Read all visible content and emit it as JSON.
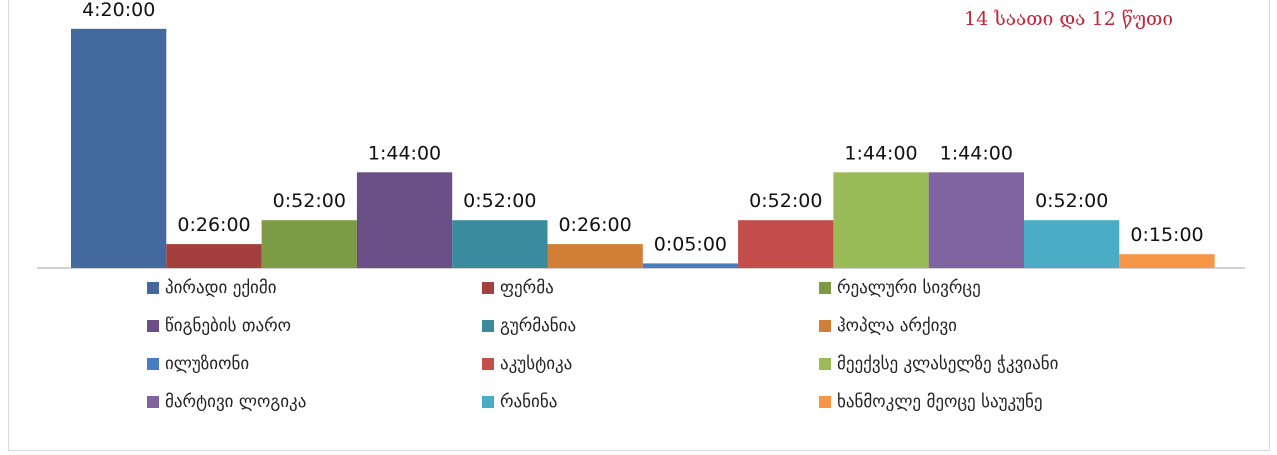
{
  "chart_data": {
    "type": "bar",
    "title": "",
    "annotation": "14 საათი და 12 წუთი",
    "xlabel": "",
    "ylabel": "",
    "ylim": [
      0,
      280
    ],
    "value_unit": "minutes",
    "legend_position": "bottom",
    "grid": false,
    "series": [
      {
        "name": "პირადი ექიმი",
        "value": 260,
        "label": "4:20:00",
        "color": "#426A9E"
      },
      {
        "name": "ფერმა",
        "value": 26,
        "label": "0:26:00",
        "color": "#A3403E"
      },
      {
        "name": "რეალური სივრცე",
        "value": 52,
        "label": "0:52:00",
        "color": "#7D9A45"
      },
      {
        "name": "წიგნების თარო",
        "value": 104,
        "label": "1:44:00",
        "color": "#6A5087"
      },
      {
        "name": "გურმანია",
        "value": 52,
        "label": "0:52:00",
        "color": "#3A8B9E"
      },
      {
        "name": "ჰოპლა არქივი",
        "value": 26,
        "label": "0:26:00",
        "color": "#D17E37"
      },
      {
        "name": "ილუზიონი",
        "value": 5,
        "label": "0:05:00",
        "color": "#4A7DBF"
      },
      {
        "name": "აკუსტიკა",
        "value": 52,
        "label": "0:52:00",
        "color": "#C24D4B"
      },
      {
        "name": "მეექვსე კლასელზე ჭკვიანი",
        "value": 104,
        "label": "1:44:00",
        "color": "#9BBB59"
      },
      {
        "name": "მარტივი ლოგიკა",
        "value": 104,
        "label": "1:44:00",
        "color": "#8064A2"
      },
      {
        "name": "რანინა",
        "value": 52,
        "label": "0:52:00",
        "color": "#4BACC6"
      },
      {
        "name": "ხანმოკლე მეოცე საუკუნე",
        "value": 15,
        "label": "0:15:00",
        "color": "#F79646"
      }
    ]
  }
}
